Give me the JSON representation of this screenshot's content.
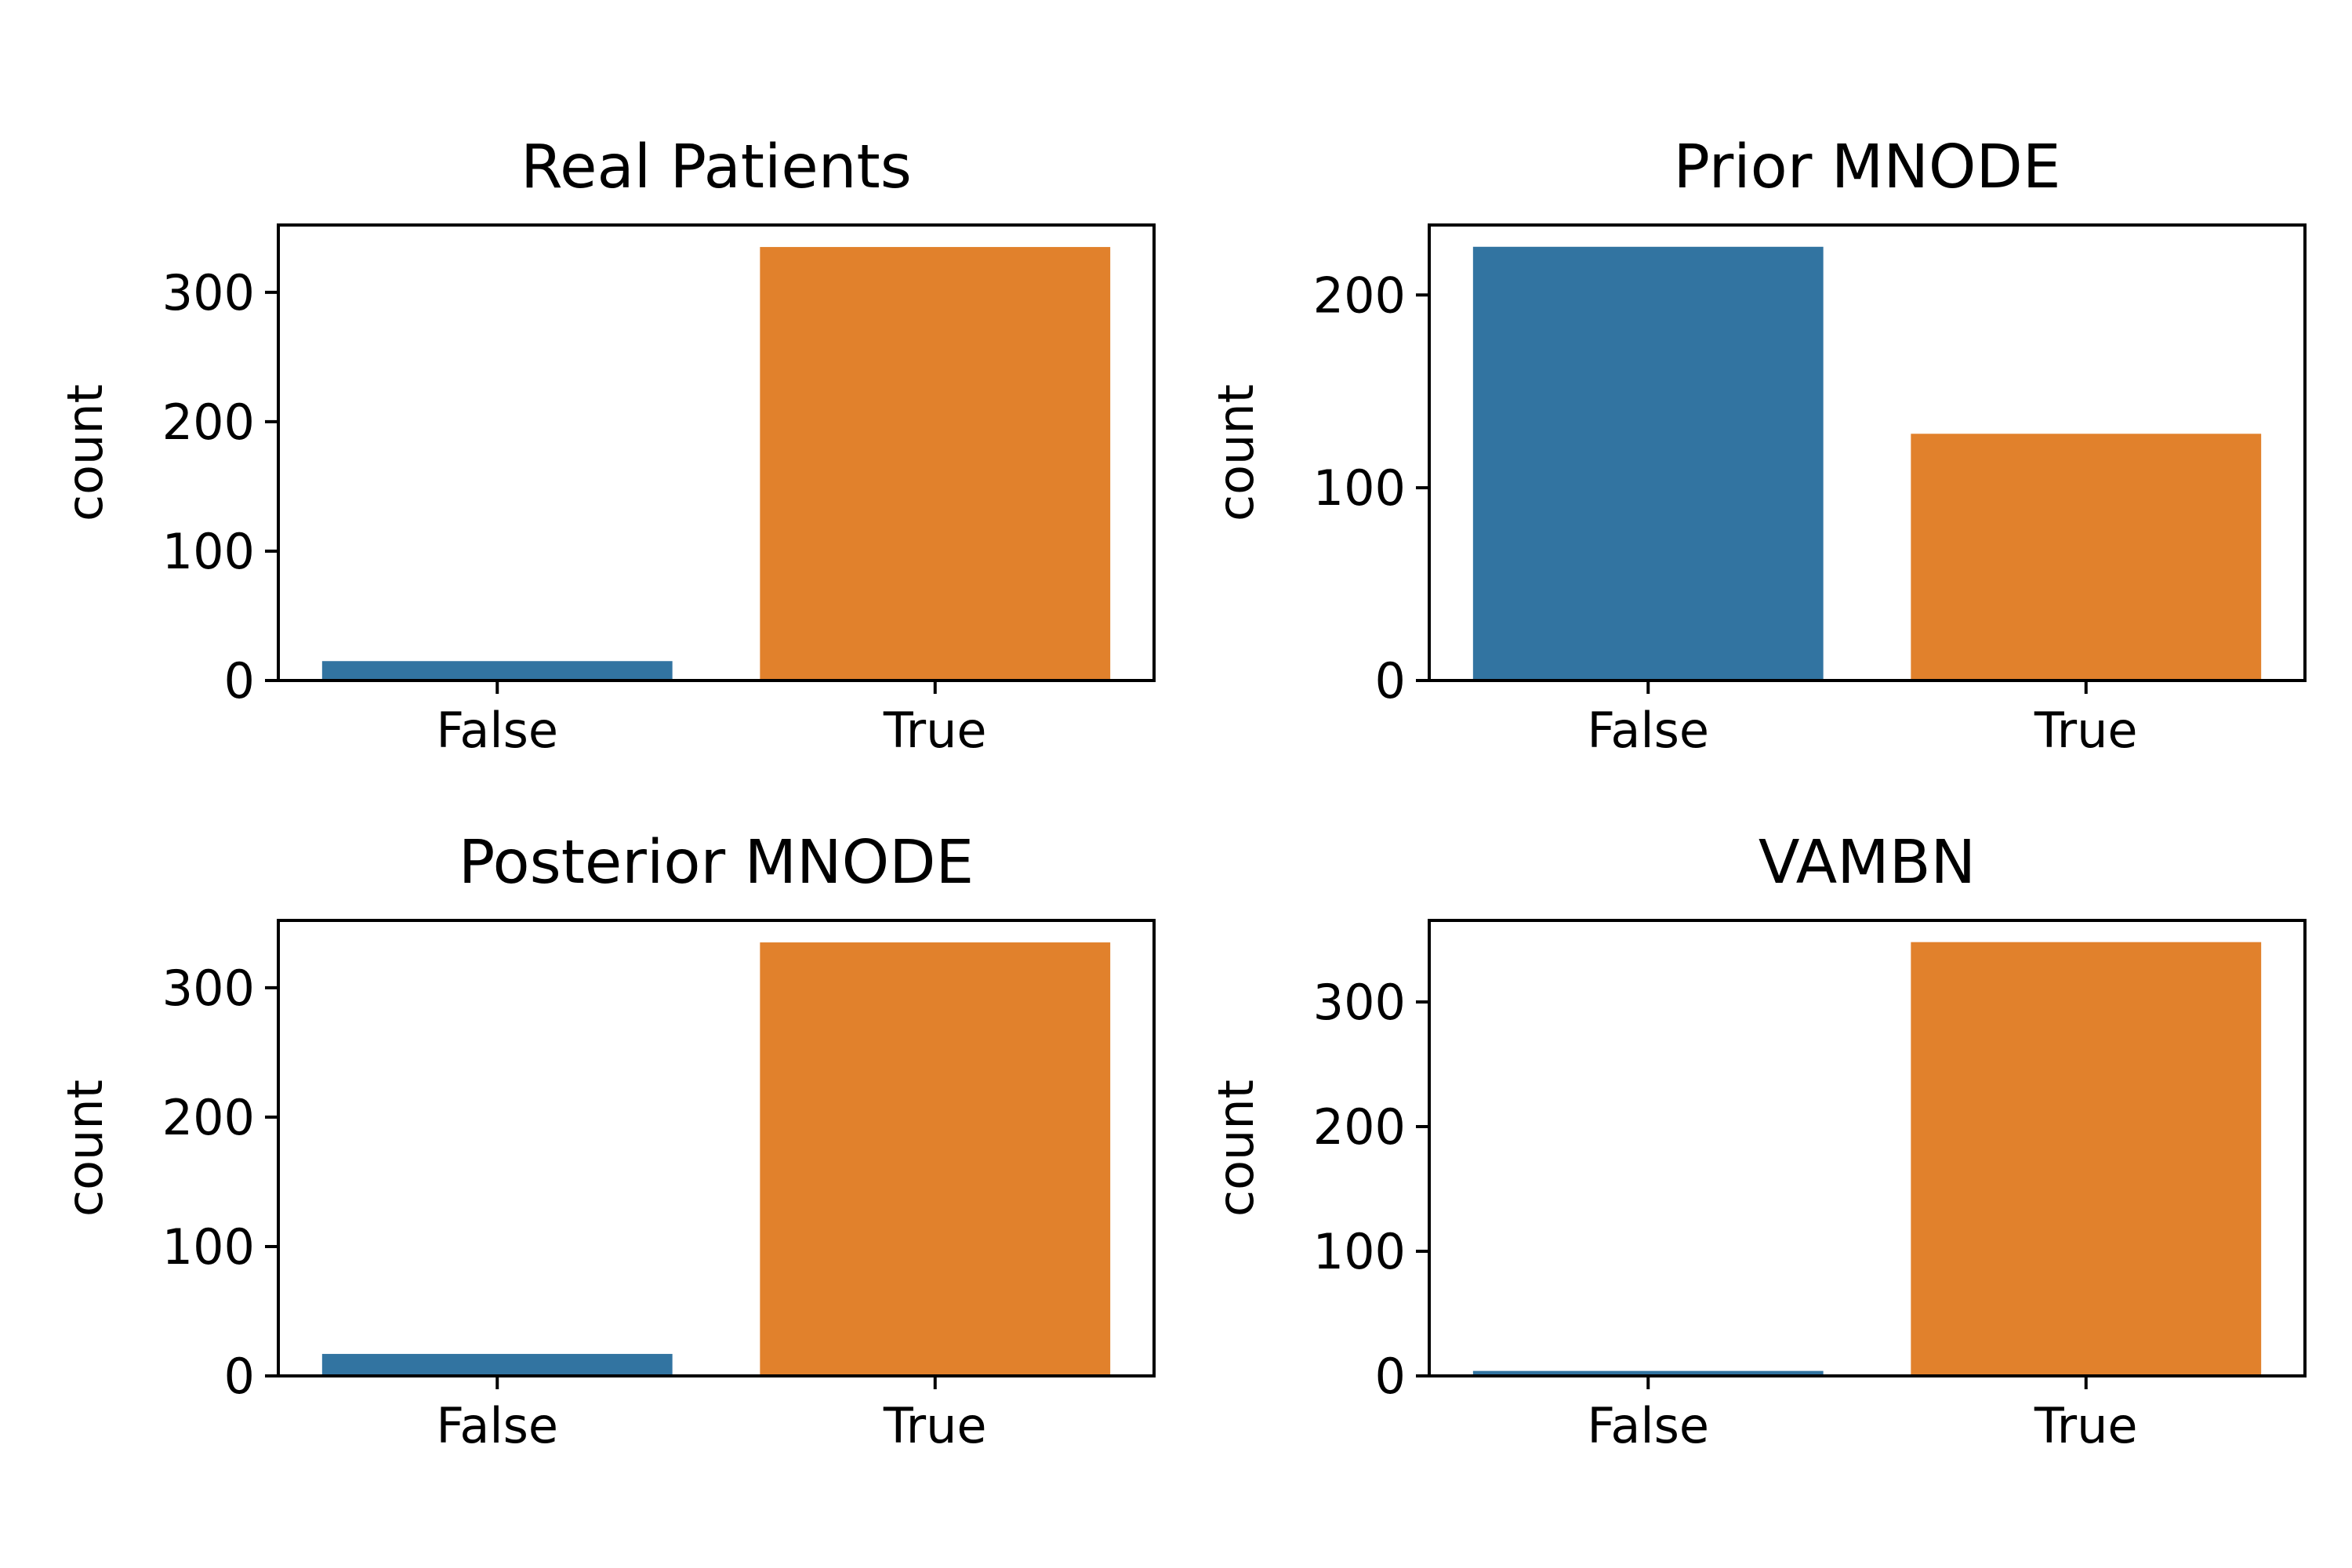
{
  "chart_data": [
    {
      "type": "bar",
      "title": "Real Patients",
      "ylabel": "count",
      "xlabel": "",
      "categories": [
        "False",
        "True"
      ],
      "values": [
        15,
        335
      ],
      "ylim": [
        0,
        352
      ],
      "yticks": [
        0,
        100,
        200,
        300
      ],
      "colors": [
        "#3274a1",
        "#e1812c"
      ]
    },
    {
      "type": "bar",
      "title": "Prior MNODE",
      "ylabel": "count",
      "xlabel": "",
      "categories": [
        "False",
        "True"
      ],
      "values": [
        225,
        128
      ],
      "ylim": [
        0,
        236.3
      ],
      "yticks": [
        0,
        100,
        200
      ],
      "colors": [
        "#3274a1",
        "#e1812c"
      ]
    },
    {
      "type": "bar",
      "title": "Posterior MNODE",
      "ylabel": "count",
      "xlabel": "",
      "categories": [
        "False",
        "True"
      ],
      "values": [
        17,
        335
      ],
      "ylim": [
        0,
        352
      ],
      "yticks": [
        0,
        100,
        200,
        300
      ],
      "colors": [
        "#3274a1",
        "#e1812c"
      ]
    },
    {
      "type": "bar",
      "title": "VAMBN",
      "ylabel": "count",
      "xlabel": "",
      "categories": [
        "False",
        "True"
      ],
      "values": [
        4,
        348
      ],
      "ylim": [
        0,
        365.4
      ],
      "yticks": [
        0,
        100,
        200,
        300
      ],
      "colors": [
        "#3274a1",
        "#e1812c"
      ]
    }
  ]
}
